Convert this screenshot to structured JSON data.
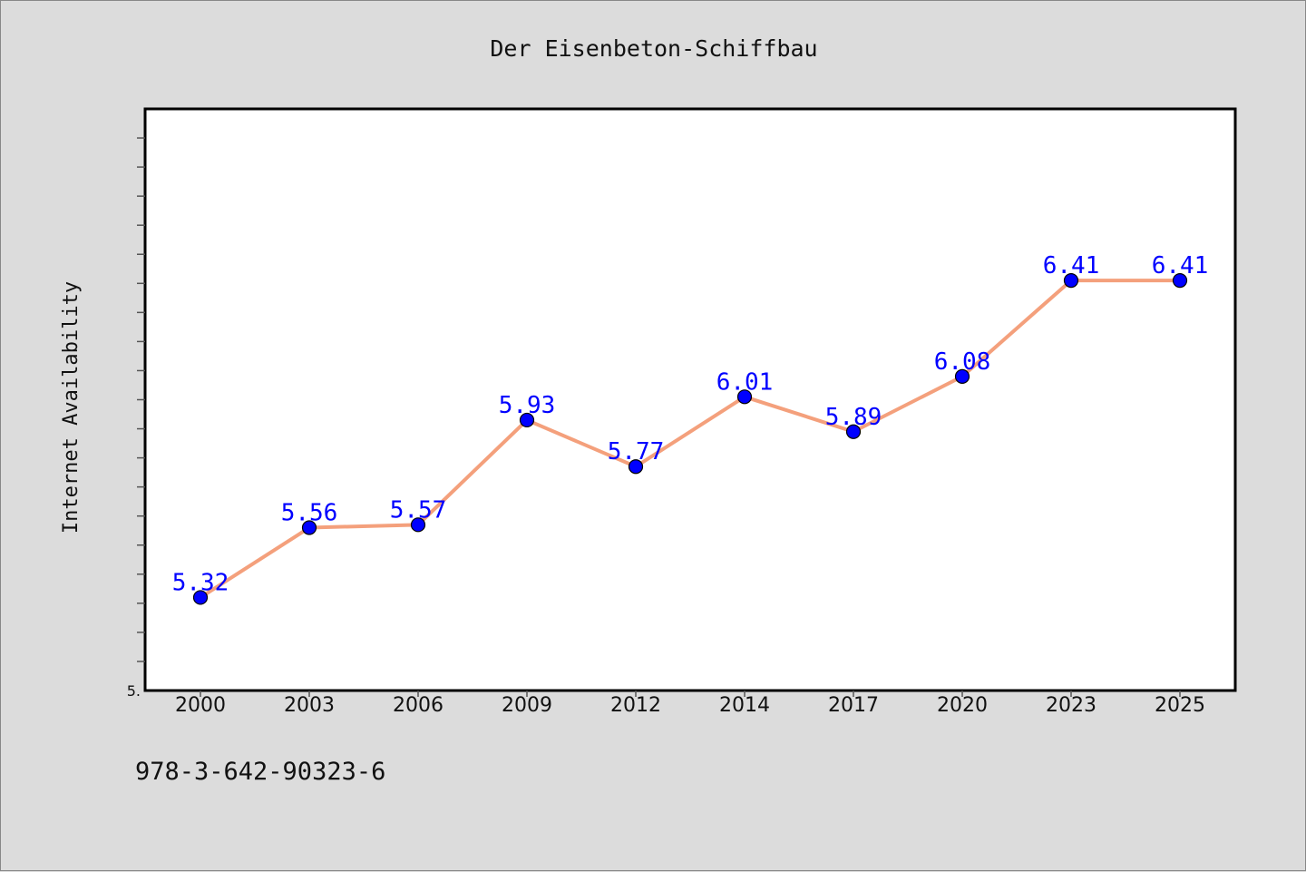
{
  "chart_data": {
    "type": "line",
    "title": "Der Eisenbeton-Schiffbau",
    "xlabel": "",
    "ylabel": "Internet Availability",
    "categories": [
      "2000",
      "2003",
      "2006",
      "2009",
      "2012",
      "2014",
      "2017",
      "2020",
      "2023",
      "2025"
    ],
    "series": [
      {
        "values": [
          5.32,
          5.56,
          5.57,
          5.93,
          5.77,
          6.01,
          5.89,
          6.08,
          6.41,
          6.41
        ],
        "labels": [
          "5.32",
          "5.56",
          "5.57",
          "5.93",
          "5.77",
          "6.01",
          "5.89",
          "6.08",
          "6.41",
          "6.41"
        ]
      }
    ],
    "ylim": [
      5.0,
      7.0
    ],
    "y_tick_label": "5.",
    "grid": false,
    "legend": "none",
    "colors": {
      "line": "#f4a07c",
      "marker": "#0000ff",
      "data_label": "#0000ff",
      "background": "#dcdcdc",
      "plot_background": "#ffffff"
    }
  },
  "footnote": "978-3-642-90323-6"
}
